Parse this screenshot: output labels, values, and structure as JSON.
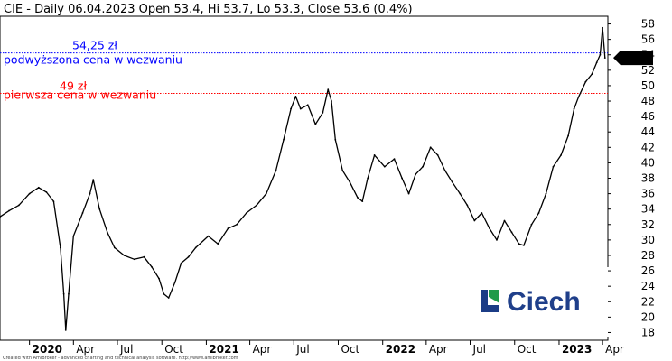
{
  "header": {
    "text": "CIE - Daily 06.04.2023 Open 53.4, Hi 53.7, Lo 53.3, Close 53.6 (0.4%)"
  },
  "footer": {
    "text": "Created with AmiBroker - advanced charting and technical analysis software. http://www.amibroker.com"
  },
  "logo": {
    "text": "Ciech",
    "colors": [
      "#1b3c86",
      "#1f9a4a"
    ]
  },
  "chart_data": {
    "type": "line",
    "title": "",
    "xlabel": "",
    "ylabel": "",
    "ylim": [
      17,
      59
    ],
    "xlim": [
      "2019-11-01",
      "2023-04-12"
    ],
    "y_ticks": [
      18,
      20,
      22,
      24,
      26,
      28,
      30,
      32,
      34,
      36,
      38,
      40,
      42,
      44,
      46,
      48,
      50,
      52,
      54,
      56,
      58
    ],
    "x_ticks": [
      {
        "date": "2020-01-01",
        "label": "2020",
        "bold": true
      },
      {
        "date": "2020-04-01",
        "label": "Apr",
        "bold": false
      },
      {
        "date": "2020-07-01",
        "label": "Jul",
        "bold": false
      },
      {
        "date": "2020-10-01",
        "label": "Oct",
        "bold": false
      },
      {
        "date": "2021-01-01",
        "label": "2021",
        "bold": true
      },
      {
        "date": "2021-04-01",
        "label": "Apr",
        "bold": false
      },
      {
        "date": "2021-07-01",
        "label": "Jul",
        "bold": false
      },
      {
        "date": "2021-10-01",
        "label": "Oct",
        "bold": false
      },
      {
        "date": "2022-01-01",
        "label": "2022",
        "bold": true
      },
      {
        "date": "2022-04-01",
        "label": "Apr",
        "bold": false
      },
      {
        "date": "2022-07-01",
        "label": "Jul",
        "bold": false
      },
      {
        "date": "2022-10-01",
        "label": "Oct",
        "bold": false
      },
      {
        "date": "2023-01-01",
        "label": "2023",
        "bold": true
      },
      {
        "date": "2023-04-01",
        "label": "Apr",
        "bold": false
      }
    ],
    "series": [
      {
        "color": "#000000",
        "points": [
          [
            "2019-11-01",
            33.0
          ],
          [
            "2019-11-20",
            33.8
          ],
          [
            "2019-12-10",
            34.5
          ],
          [
            "2020-01-01",
            36.0
          ],
          [
            "2020-01-20",
            36.8
          ],
          [
            "2020-02-05",
            36.2
          ],
          [
            "2020-02-20",
            35.0
          ],
          [
            "2020-03-05",
            29.0
          ],
          [
            "2020-03-12",
            23.0
          ],
          [
            "2020-03-16",
            18.3
          ],
          [
            "2020-03-22",
            23.0
          ],
          [
            "2020-04-01",
            30.5
          ],
          [
            "2020-04-20",
            33.5
          ],
          [
            "2020-05-05",
            36.0
          ],
          [
            "2020-05-12",
            37.8
          ],
          [
            "2020-05-25",
            34.0
          ],
          [
            "2020-06-10",
            31.0
          ],
          [
            "2020-06-25",
            29.0
          ],
          [
            "2020-07-15",
            28.0
          ],
          [
            "2020-08-05",
            27.5
          ],
          [
            "2020-08-25",
            27.8
          ],
          [
            "2020-09-10",
            26.5
          ],
          [
            "2020-09-25",
            25.0
          ],
          [
            "2020-10-05",
            23.0
          ],
          [
            "2020-10-15",
            22.5
          ],
          [
            "2020-10-28",
            24.5
          ],
          [
            "2020-11-10",
            27.0
          ],
          [
            "2020-11-25",
            27.8
          ],
          [
            "2020-12-10",
            29.0
          ],
          [
            "2021-01-05",
            30.5
          ],
          [
            "2021-01-25",
            29.5
          ],
          [
            "2021-02-15",
            31.5
          ],
          [
            "2021-03-05",
            32.0
          ],
          [
            "2021-03-25",
            33.5
          ],
          [
            "2021-04-15",
            34.5
          ],
          [
            "2021-05-05",
            36.0
          ],
          [
            "2021-05-25",
            39.0
          ],
          [
            "2021-06-10",
            43.0
          ],
          [
            "2021-06-25",
            47.0
          ],
          [
            "2021-07-05",
            48.6
          ],
          [
            "2021-07-15",
            47.0
          ],
          [
            "2021-07-30",
            47.5
          ],
          [
            "2021-08-15",
            45.0
          ],
          [
            "2021-08-30",
            46.5
          ],
          [
            "2021-09-10",
            49.5
          ],
          [
            "2021-09-17",
            48.0
          ],
          [
            "2021-09-25",
            43.0
          ],
          [
            "2021-10-10",
            39.0
          ],
          [
            "2021-10-25",
            37.5
          ],
          [
            "2021-11-10",
            35.5
          ],
          [
            "2021-11-20",
            35.0
          ],
          [
            "2021-12-01",
            38.0
          ],
          [
            "2021-12-15",
            41.0
          ],
          [
            "2022-01-05",
            39.5
          ],
          [
            "2022-01-25",
            40.5
          ],
          [
            "2022-02-10",
            38.0
          ],
          [
            "2022-02-24",
            36.0
          ],
          [
            "2022-03-10",
            38.5
          ],
          [
            "2022-03-25",
            39.5
          ],
          [
            "2022-04-10",
            42.0
          ],
          [
            "2022-04-25",
            41.0
          ],
          [
            "2022-05-10",
            39.0
          ],
          [
            "2022-05-25",
            37.5
          ],
          [
            "2022-06-10",
            36.0
          ],
          [
            "2022-06-25",
            34.5
          ],
          [
            "2022-07-10",
            32.5
          ],
          [
            "2022-07-25",
            33.5
          ],
          [
            "2022-08-10",
            31.5
          ],
          [
            "2022-08-25",
            30.0
          ],
          [
            "2022-09-10",
            32.5
          ],
          [
            "2022-09-25",
            31.0
          ],
          [
            "2022-10-10",
            29.5
          ],
          [
            "2022-10-20",
            29.3
          ],
          [
            "2022-11-05",
            32.0
          ],
          [
            "2022-11-20",
            33.5
          ],
          [
            "2022-12-05",
            36.0
          ],
          [
            "2022-12-20",
            39.5
          ],
          [
            "2023-01-05",
            41.0
          ],
          [
            "2023-01-20",
            43.5
          ],
          [
            "2023-02-01",
            47.0
          ],
          [
            "2023-02-10",
            48.5
          ],
          [
            "2023-02-25",
            50.5
          ],
          [
            "2023-03-10",
            51.5
          ],
          [
            "2023-03-20",
            53.0
          ],
          [
            "2023-03-27",
            54.0
          ],
          [
            "2023-04-01",
            57.5
          ],
          [
            "2023-04-06",
            53.6
          ]
        ]
      }
    ],
    "lines": [
      {
        "value": 54.25,
        "label_value": "54,25 zł",
        "label_desc": "podwyższona cena w wezwaniu",
        "color": "#0000ff"
      },
      {
        "value": 49,
        "label_value": "49 zł",
        "label_desc": "pierwsza cena w wezwaniu",
        "color": "#ff0000"
      }
    ],
    "last_value": {
      "value": 53.6,
      "label": "53.6"
    },
    "grid": false
  }
}
